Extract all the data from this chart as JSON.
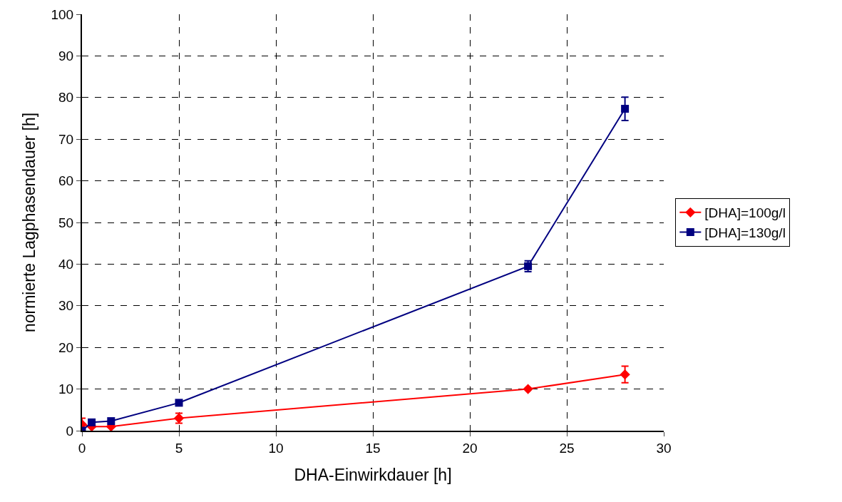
{
  "chart_data": {
    "type": "line",
    "xlabel": "DHA-Einwirkdauer [h]",
    "ylabel": "normierte Lagphasendauer [h]",
    "x": [
      0,
      0.5,
      1.5,
      5,
      23,
      28
    ],
    "series": [
      {
        "name": "[DHA]=100g/l",
        "color": "#ff0000",
        "marker": "diamond",
        "values": [
          1.5,
          1,
          1,
          3,
          10,
          13.5
        ],
        "errors": [
          1.5,
          null,
          null,
          1.2,
          null,
          2
        ]
      },
      {
        "name": "[DHA]=130g/l",
        "color": "#000080",
        "marker": "square",
        "values": [
          0,
          2,
          2.3,
          6.7,
          39.5,
          77.3
        ],
        "errors": [
          null,
          null,
          null,
          null,
          1.3,
          2.8
        ]
      }
    ],
    "xlim": [
      0,
      30
    ],
    "xticks": [
      0,
      5,
      10,
      15,
      20,
      25,
      30
    ],
    "ylim": [
      0,
      100
    ],
    "yticks": [
      0,
      10,
      20,
      30,
      40,
      50,
      60,
      70,
      80,
      90,
      100
    ],
    "grid": true,
    "legend": "right",
    "line_style": "solid"
  }
}
